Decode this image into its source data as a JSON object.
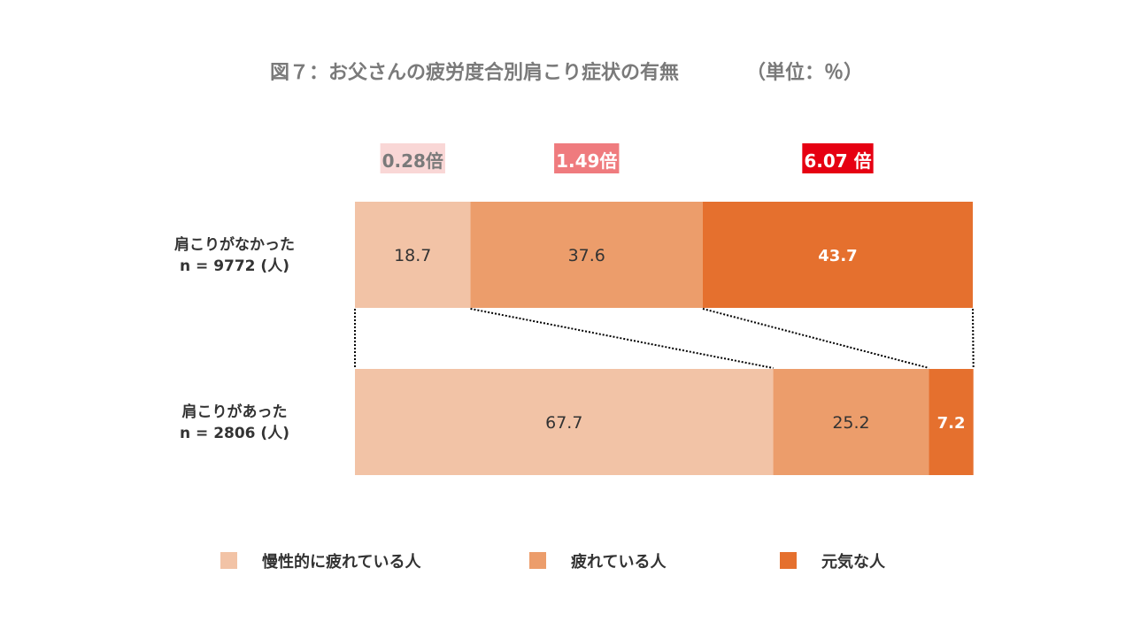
{
  "chart_data": {
    "type": "bar",
    "orientation": "horizontal",
    "stacked": true,
    "normalized": true,
    "title": "図７：お父さんの疲労度合別肩こり症状の有無",
    "unit_label": "（単位：％）",
    "categories": [
      {
        "label": "肩こりがなかった",
        "n": "n = 9772 (人)"
      },
      {
        "label": "肩こりがあった",
        "n": "n = 2806 (人)"
      }
    ],
    "series": [
      {
        "name": "慢性的に疲れている人",
        "color": "#F2C3A6",
        "values": [
          18.7,
          67.7
        ]
      },
      {
        "name": "疲れている人",
        "color": "#EC9D6B",
        "values": [
          37.6,
          25.2
        ]
      },
      {
        "name": "元気な人",
        "color": "#E5702E",
        "values": [
          43.7,
          7.2
        ]
      }
    ],
    "ratios": [
      {
        "label": "0.28倍",
        "bg": "#F9D7D6",
        "color": "#7a7a7a"
      },
      {
        "label": "1.49倍",
        "bg": "#EF7B7E",
        "color": "#ffffff"
      },
      {
        "label": "6.07 倍",
        "bg": "#E60012",
        "color": "#ffffff"
      }
    ],
    "legend_position": "bottom",
    "xlim": [
      0,
      100
    ]
  }
}
